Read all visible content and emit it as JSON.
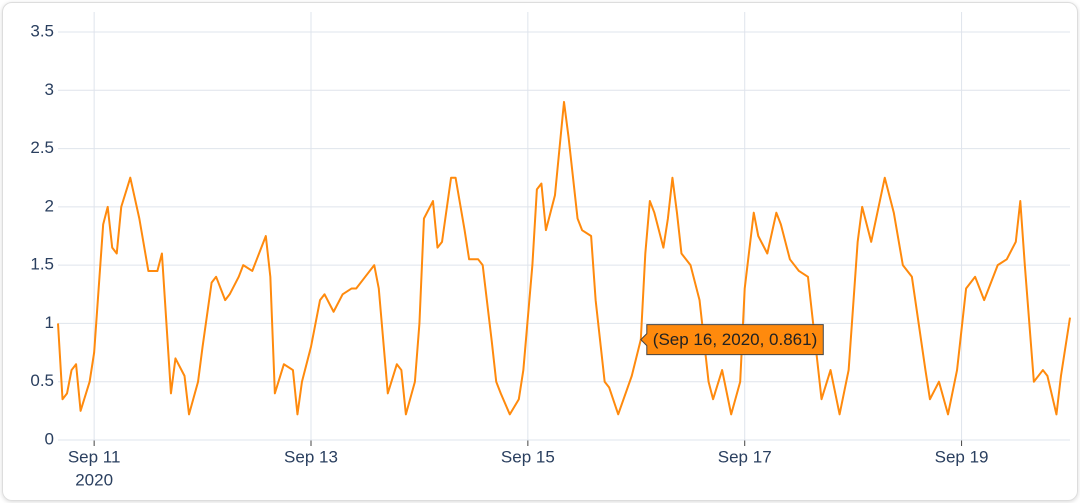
{
  "chart_data": {
    "type": "line",
    "x": [
      "2020-09-10T16:00",
      "2020-09-10T17:00",
      "2020-09-10T18:00",
      "2020-09-10T19:00",
      "2020-09-10T20:00",
      "2020-09-10T21:00",
      "2020-09-10T23:00",
      "2020-09-11T00:00",
      "2020-09-11T02:00",
      "2020-09-11T03:00",
      "2020-09-11T04:00",
      "2020-09-11T05:00",
      "2020-09-11T06:00",
      "2020-09-11T08:00",
      "2020-09-11T10:00",
      "2020-09-11T12:00",
      "2020-09-11T14:00",
      "2020-09-11T15:00",
      "2020-09-11T17:00",
      "2020-09-11T18:00",
      "2020-09-11T20:00",
      "2020-09-11T21:00",
      "2020-09-11T23:00",
      "2020-09-12T00:00",
      "2020-09-12T02:00",
      "2020-09-12T03:00",
      "2020-09-12T05:00",
      "2020-09-12T06:00",
      "2020-09-12T08:00",
      "2020-09-12T09:00",
      "2020-09-12T11:00",
      "2020-09-12T12:00",
      "2020-09-12T14:00",
      "2020-09-12T15:00",
      "2020-09-12T16:00",
      "2020-09-12T18:00",
      "2020-09-12T20:00",
      "2020-09-12T21:00",
      "2020-09-12T22:00",
      "2020-09-13T00:00",
      "2020-09-13T02:00",
      "2020-09-13T03:00",
      "2020-09-13T05:00",
      "2020-09-13T07:00",
      "2020-09-13T09:00",
      "2020-09-13T10:00",
      "2020-09-13T12:00",
      "2020-09-13T14:00",
      "2020-09-13T15:00",
      "2020-09-13T17:00",
      "2020-09-13T19:00",
      "2020-09-13T20:00",
      "2020-09-13T21:00",
      "2020-09-13T23:00",
      "2020-09-14T00:00",
      "2020-09-14T01:00",
      "2020-09-14T03:00",
      "2020-09-14T04:00",
      "2020-09-14T05:00",
      "2020-09-14T07:00",
      "2020-09-14T08:00",
      "2020-09-14T10:00",
      "2020-09-14T11:00",
      "2020-09-14T13:00",
      "2020-09-14T14:00",
      "2020-09-14T16:00",
      "2020-09-14T17:00",
      "2020-09-14T18:00",
      "2020-09-14T20:00",
      "2020-09-14T22:00",
      "2020-09-14T23:00",
      "2020-09-15T01:00",
      "2020-09-15T02:00",
      "2020-09-15T03:00",
      "2020-09-15T04:00",
      "2020-09-15T06:00",
      "2020-09-15T08:00",
      "2020-09-15T09:00",
      "2020-09-15T11:00",
      "2020-09-15T12:00",
      "2020-09-15T14:00",
      "2020-09-15T15:00",
      "2020-09-15T17:00",
      "2020-09-15T18:00",
      "2020-09-15T20:00",
      "2020-09-15T23:00",
      "2020-09-16T01:00",
      "2020-09-16T02:00",
      "2020-09-16T03:00",
      "2020-09-16T04:00",
      "2020-09-16T06:00",
      "2020-09-16T07:00",
      "2020-09-16T08:00",
      "2020-09-16T09:00",
      "2020-09-16T10:00",
      "2020-09-16T12:00",
      "2020-09-16T14:00",
      "2020-09-16T16:00",
      "2020-09-16T17:00",
      "2020-09-16T19:00",
      "2020-09-16T21:00",
      "2020-09-16T23:00",
      "2020-09-17T00:00",
      "2020-09-17T02:00",
      "2020-09-17T03:00",
      "2020-09-17T05:00",
      "2020-09-17T07:00",
      "2020-09-17T08:00",
      "2020-09-17T10:00",
      "2020-09-17T12:00",
      "2020-09-17T14:00",
      "2020-09-17T16:00",
      "2020-09-17T17:00",
      "2020-09-17T19:00",
      "2020-09-17T21:00",
      "2020-09-17T23:00",
      "2020-09-18T01:00",
      "2020-09-18T02:00",
      "2020-09-18T04:00",
      "2020-09-18T07:00",
      "2020-09-18T09:00",
      "2020-09-18T11:00",
      "2020-09-18T13:00",
      "2020-09-18T16:00",
      "2020-09-18T17:00",
      "2020-09-18T19:00",
      "2020-09-18T21:00",
      "2020-09-18T23:00",
      "2020-09-19T01:00",
      "2020-09-19T03:00",
      "2020-09-19T05:00",
      "2020-09-19T06:00",
      "2020-09-19T08:00",
      "2020-09-19T10:00",
      "2020-09-19T12:00",
      "2020-09-19T13:00",
      "2020-09-19T14:00",
      "2020-09-19T16:00",
      "2020-09-19T18:00",
      "2020-09-19T19:00",
      "2020-09-19T21:00",
      "2020-09-19T22:00",
      "2020-09-20T00:00"
    ],
    "series": [
      {
        "color": "#ff8a0d",
        "values": [
          1.0,
          0.35,
          0.4,
          0.6,
          0.65,
          0.25,
          0.5,
          0.75,
          1.85,
          2.0,
          1.65,
          1.6,
          2.0,
          2.25,
          1.9,
          1.45,
          1.45,
          1.6,
          0.4,
          0.7,
          0.55,
          0.22,
          0.5,
          0.8,
          1.35,
          1.4,
          1.2,
          1.25,
          1.4,
          1.5,
          1.45,
          1.55,
          1.75,
          1.4,
          0.4,
          0.65,
          0.6,
          0.22,
          0.5,
          0.8,
          1.2,
          1.25,
          1.1,
          1.25,
          1.3,
          1.3,
          1.4,
          1.5,
          1.3,
          0.4,
          0.65,
          0.6,
          0.22,
          0.5,
          1.0,
          1.9,
          2.05,
          1.65,
          1.7,
          2.25,
          2.25,
          1.8,
          1.55,
          1.55,
          1.5,
          0.85,
          0.5,
          0.4,
          0.22,
          0.35,
          0.6,
          1.5,
          2.15,
          2.2,
          1.8,
          2.1,
          2.9,
          2.6,
          1.9,
          1.8,
          1.75,
          1.2,
          0.5,
          0.45,
          0.22,
          0.55,
          0.861,
          1.6,
          2.05,
          1.95,
          1.65,
          1.9,
          2.25,
          1.95,
          1.6,
          1.5,
          1.2,
          0.5,
          0.35,
          0.6,
          0.22,
          0.5,
          1.3,
          1.95,
          1.75,
          1.6,
          1.95,
          1.85,
          1.55,
          1.45,
          1.4,
          0.7,
          0.35,
          0.6,
          0.22,
          0.6,
          1.7,
          2.0,
          1.7,
          2.25,
          1.95,
          1.5,
          1.4,
          0.6,
          0.35,
          0.5,
          0.22,
          0.6,
          1.3,
          1.4,
          1.2,
          1.3,
          1.5,
          1.55,
          1.7,
          2.05,
          1.5,
          0.5,
          0.6,
          0.55,
          0.22,
          0.55,
          1.05
        ]
      }
    ],
    "xlim": [
      "2020-09-10T16:00",
      "2020-09-20T00:00"
    ],
    "xticks": [
      {
        "value": "2020-09-11T00:00",
        "label": "Sep 11"
      },
      {
        "value": "2020-09-13T00:00",
        "label": "Sep 13"
      },
      {
        "value": "2020-09-15T00:00",
        "label": "Sep 15"
      },
      {
        "value": "2020-09-17T00:00",
        "label": "Sep 17"
      },
      {
        "value": "2020-09-19T00:00",
        "label": "Sep 19"
      }
    ],
    "x_year_label": "2020",
    "ylim": [
      0,
      3.5
    ],
    "yticks": [
      0,
      0.5,
      1,
      1.5,
      2,
      2.5,
      3,
      3.5
    ],
    "grid": true,
    "hover": {
      "x": "2020-09-16T01:00",
      "y": 0.861,
      "label": "(Sep 16, 2020, 0.861)",
      "color": "#ff8a0d"
    }
  }
}
